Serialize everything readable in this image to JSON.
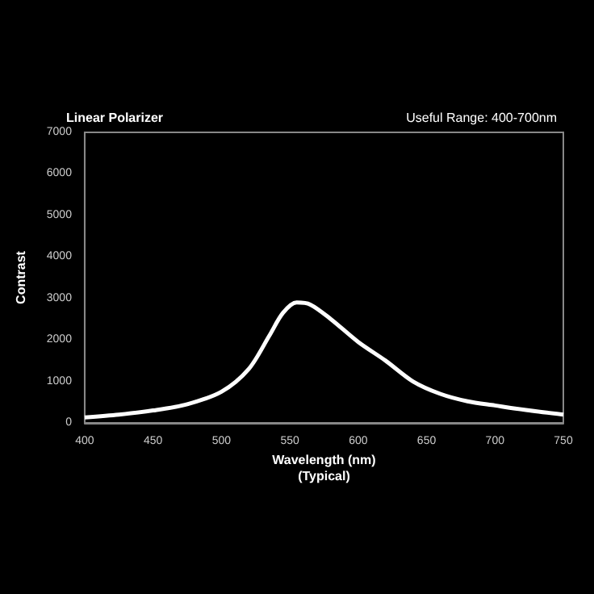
{
  "chart_data": {
    "type": "line",
    "title": "Linear Polarizer",
    "subtitle": "Useful Range: 400-700nm",
    "xlabel": "Wavelength (nm)\n(Typical)",
    "ylabel": "Contrast",
    "x": [
      400,
      425,
      450,
      475,
      500,
      520,
      535,
      545,
      555,
      565,
      580,
      600,
      620,
      640,
      660,
      680,
      700,
      725,
      750
    ],
    "series": [
      {
        "color": "#ffffff",
        "values": [
          130,
          200,
          300,
          450,
          750,
          1300,
          2100,
          2650,
          2900,
          2850,
          2500,
          1950,
          1500,
          1000,
          700,
          520,
          420,
          300,
          200
        ]
      }
    ],
    "xlim": [
      400,
      750
    ],
    "xticks": [
      400,
      450,
      500,
      550,
      600,
      650,
      700,
      750
    ],
    "ylim": [
      0,
      7000
    ],
    "yticks": [
      0,
      1000,
      2000,
      3000,
      4000,
      5000,
      6000,
      7000
    ],
    "grid": false,
    "marker": "none",
    "line_style": "solid"
  }
}
